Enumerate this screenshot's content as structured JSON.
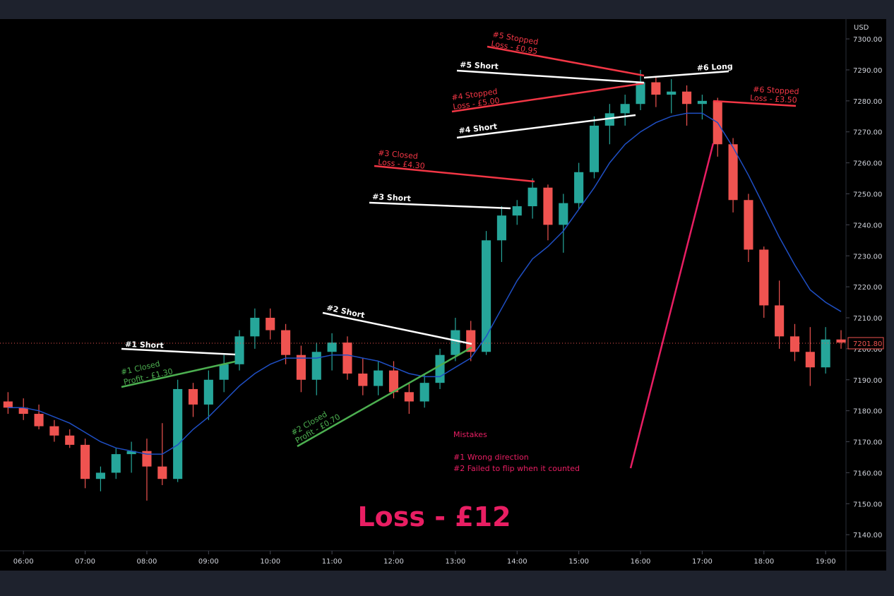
{
  "chart_data": {
    "type": "candlestick",
    "y_unit": "USD",
    "up_color": "#26a69a",
    "down_color": "#ef5350",
    "ma_color": "#1f4fc4",
    "x": [
      5.75,
      6,
      6.25,
      6.5,
      6.75,
      7,
      7.25,
      7.5,
      7.75,
      8,
      8.25,
      8.5,
      8.75,
      9,
      9.25,
      9.5,
      9.75,
      10,
      10.25,
      10.5,
      10.75,
      11,
      11.25,
      11.5,
      11.75,
      12,
      12.25,
      12.5,
      12.75,
      13,
      13.25,
      13.5,
      13.75,
      14,
      14.25,
      14.5,
      14.75,
      15,
      15.25,
      15.5,
      15.75,
      16,
      16.25,
      16.5,
      16.75,
      17,
      17.25,
      17.5,
      17.75,
      18,
      18.25,
      18.5,
      18.75,
      19,
      19.25
    ],
    "open": [
      7183,
      7181,
      7179,
      7175,
      7172,
      7169,
      7158,
      7160,
      7166,
      7167,
      7162,
      7158,
      7187,
      7182,
      7190,
      7195,
      7204,
      7210,
      7206,
      7198,
      7190,
      7199,
      7202,
      7192,
      7188,
      7193,
      7186,
      7183,
      7189,
      7198,
      7206,
      7199,
      7235,
      7243,
      7246,
      7252,
      7240,
      7247,
      7257,
      7272,
      7276,
      7279,
      7286,
      7282,
      7283,
      7279,
      7280,
      7266,
      7248,
      7232,
      7214,
      7204,
      7199,
      7194,
      7203
    ],
    "high": [
      7186,
      7184,
      7182,
      7177,
      7174,
      7171,
      7162,
      7168,
      7170,
      7171,
      7176,
      7190,
      7189,
      7193,
      7198,
      7206,
      7213,
      7213,
      7208,
      7201,
      7202,
      7205,
      7204,
      7197,
      7196,
      7196,
      7189,
      7192,
      7200,
      7210,
      7209,
      7238,
      7246,
      7248,
      7255,
      7253,
      7250,
      7260,
      7275,
      7279,
      7282,
      7290,
      7288,
      7287,
      7285,
      7282,
      7281,
      7268,
      7250,
      7233,
      7222,
      7208,
      7207,
      7207,
      7206
    ],
    "low": [
      7179,
      7177,
      7174,
      7170,
      7168,
      7155,
      7154,
      7158,
      7160,
      7151,
      7156,
      7157,
      7178,
      7177,
      7186,
      7193,
      7200,
      7203,
      7195,
      7186,
      7185,
      7193,
      7190,
      7185,
      7185,
      7184,
      7179,
      7181,
      7187,
      7196,
      7196,
      7198,
      7228,
      7240,
      7242,
      7235,
      7231,
      7245,
      7255,
      7266,
      7272,
      7277,
      7278,
      7276,
      7272,
      7274,
      7262,
      7244,
      7228,
      7210,
      7200,
      7196,
      7188,
      7192,
      7200
    ],
    "close": [
      7181,
      7179,
      7175,
      7172,
      7169,
      7158,
      7160,
      7166,
      7167,
      7162,
      7158,
      7187,
      7182,
      7190,
      7195,
      7204,
      7210,
      7206,
      7198,
      7190,
      7199,
      7202,
      7192,
      7188,
      7193,
      7186,
      7183,
      7189,
      7198,
      7206,
      7199,
      7235,
      7243,
      7246,
      7252,
      7240,
      7247,
      7257,
      7272,
      7276,
      7279,
      7286,
      7282,
      7283,
      7279,
      7280,
      7266,
      7248,
      7232,
      7214,
      7204,
      7199,
      7194,
      7203,
      7202
    ],
    "ma": [
      7181,
      7181,
      7180,
      7178,
      7176,
      7173,
      7170,
      7168,
      7167,
      7166,
      7166,
      7169,
      7174,
      7178,
      7183,
      7188,
      7192,
      7195,
      7197,
      7197,
      7197,
      7198,
      7198,
      7197,
      7196,
      7194,
      7192,
      7191,
      7191,
      7194,
      7197,
      7204,
      7213,
      7222,
      7229,
      7233,
      7238,
      7245,
      7252,
      7260,
      7266,
      7270,
      7273,
      7275,
      7276,
      7276,
      7273,
      7265,
      7256,
      7246,
      7236,
      7227,
      7219,
      7215,
      7212
    ],
    "xlim": [
      5.62,
      19.33
    ],
    "ylim": [
      7134.8,
      7306.4
    ],
    "xticks": [
      {
        "value": 6,
        "label": "06:00"
      },
      {
        "value": 7,
        "label": "07:00"
      },
      {
        "value": 8,
        "label": "08:00"
      },
      {
        "value": 9,
        "label": "09:00"
      },
      {
        "value": 10,
        "label": "10:00"
      },
      {
        "value": 11,
        "label": "11:00"
      },
      {
        "value": 12,
        "label": "12:00"
      },
      {
        "value": 13,
        "label": "13:00"
      },
      {
        "value": 14,
        "label": "14:00"
      },
      {
        "value": 15,
        "label": "15:00"
      },
      {
        "value": 16,
        "label": "16:00"
      },
      {
        "value": 17,
        "label": "17:00"
      },
      {
        "value": 18,
        "label": "18:00"
      },
      {
        "value": 19,
        "label": "19:00"
      }
    ],
    "yticks": [
      {
        "value": 7140,
        "label": "7140.00"
      },
      {
        "value": 7150,
        "label": "7150.00"
      },
      {
        "value": 7160,
        "label": "7160.00"
      },
      {
        "value": 7170,
        "label": "7170.00"
      },
      {
        "value": 7180,
        "label": "7180.00"
      },
      {
        "value": 7190,
        "label": "7190.00"
      },
      {
        "value": 7200,
        "label": "7200.00"
      },
      {
        "value": 7210,
        "label": "7210.00"
      },
      {
        "value": 7220,
        "label": "7220.00"
      },
      {
        "value": 7230,
        "label": "7230.00"
      },
      {
        "value": 7240,
        "label": "7240.00"
      },
      {
        "value": 7250,
        "label": "7250.00"
      },
      {
        "value": 7260,
        "label": "7260.00"
      },
      {
        "value": 7270,
        "label": "7270.00"
      },
      {
        "value": 7280,
        "label": "7280.00"
      },
      {
        "value": 7290,
        "label": "7290.00"
      },
      {
        "value": 7300,
        "label": "7300.00"
      }
    ],
    "last_price": {
      "value": 7201.8,
      "label": "7201.80"
    },
    "annotations": [
      "#1 Short",
      "#1 Closed",
      "Profit - £1.30",
      "#2 Short",
      "#2 Closed",
      "Profit - £0.70",
      "#3 Short",
      "#3 Closed",
      "Loss - £4.30",
      "#4 Short",
      "#4 Stopped",
      "Loss - £5.00",
      "#5 Short",
      "#5 Stopped",
      "Loss - £0.95",
      "#6 Long",
      "#6 Stopped",
      "Loss - £3.50"
    ],
    "mistakes": [
      "Mistakes",
      "#1 Wrong direction",
      "#2 Failed to flip when it counted"
    ],
    "result": "Loss - £12"
  }
}
